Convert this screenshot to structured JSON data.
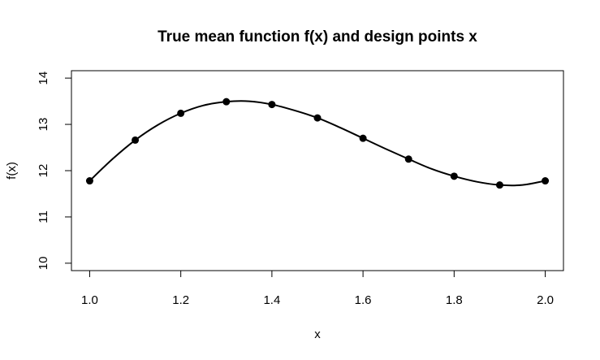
{
  "chart_data": {
    "type": "line",
    "title": "True mean function f(x) and design points x",
    "xlabel": "x",
    "ylabel": "f(x)",
    "xlim": [
      0.96,
      2.04
    ],
    "ylim": [
      9.84,
      14.16
    ],
    "x_ticks": [
      1.0,
      1.2,
      1.4,
      1.6,
      1.8,
      2.0
    ],
    "x_tick_labels": [
      "1.0",
      "1.2",
      "1.4",
      "1.6",
      "1.8",
      "2.0"
    ],
    "y_ticks": [
      10,
      11,
      12,
      13,
      14
    ],
    "y_tick_labels": [
      "10",
      "11",
      "12",
      "13",
      "14"
    ],
    "grid": false,
    "legend": "none",
    "series": [
      {
        "kind": "curve",
        "x": [
          1.0,
          1.05,
          1.1,
          1.15,
          1.2,
          1.25,
          1.3,
          1.35,
          1.4,
          1.45,
          1.5,
          1.55,
          1.6,
          1.65,
          1.7,
          1.75,
          1.8,
          1.85,
          1.9,
          1.95,
          2.0
        ],
        "values": [
          11.78,
          12.25,
          12.66,
          12.99,
          13.24,
          13.41,
          13.49,
          13.5,
          13.43,
          13.3,
          13.14,
          12.93,
          12.7,
          12.47,
          12.25,
          12.04,
          11.88,
          11.76,
          11.69,
          11.69,
          11.78
        ],
        "color": "#000000"
      },
      {
        "kind": "points",
        "x": [
          1.0,
          1.1,
          1.2,
          1.3,
          1.4,
          1.5,
          1.6,
          1.7,
          1.8,
          1.9,
          2.0
        ],
        "values": [
          11.78,
          12.66,
          13.24,
          13.49,
          13.43,
          13.14,
          12.7,
          12.25,
          11.88,
          11.69,
          11.78
        ],
        "color": "#000000"
      }
    ]
  }
}
